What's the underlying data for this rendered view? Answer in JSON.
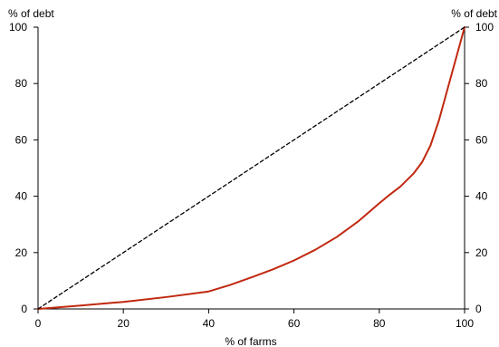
{
  "chart_data": {
    "type": "line",
    "title": "",
    "xlabel": "% of farms",
    "ylabel_left": "% of debt",
    "ylabel_right": "% of debt",
    "xlim": [
      0,
      100
    ],
    "ylim": [
      0,
      100
    ],
    "x_ticks": [
      0,
      20,
      40,
      60,
      80,
      100
    ],
    "y_ticks": [
      0,
      20,
      40,
      60,
      80,
      100
    ],
    "grid": false,
    "legend": "none",
    "series": [
      {
        "style": "solid",
        "color": "#c0280f",
        "x": [
          0,
          10,
          20,
          30,
          40,
          45,
          50,
          55,
          60,
          65,
          70,
          75,
          80,
          82,
          85,
          88,
          90,
          92,
          94,
          96,
          98,
          100
        ],
        "y": [
          0,
          1.2,
          2.5,
          4.2,
          6.2,
          8.5,
          11.2,
          14,
          17.2,
          21,
          25.5,
          31,
          37.5,
          40,
          43.5,
          48,
          52,
          58,
          67,
          78,
          89,
          100
        ]
      },
      {
        "style": "dashed",
        "color": "#000000",
        "x": [
          0,
          100
        ],
        "y": [
          0,
          100
        ]
      }
    ]
  }
}
